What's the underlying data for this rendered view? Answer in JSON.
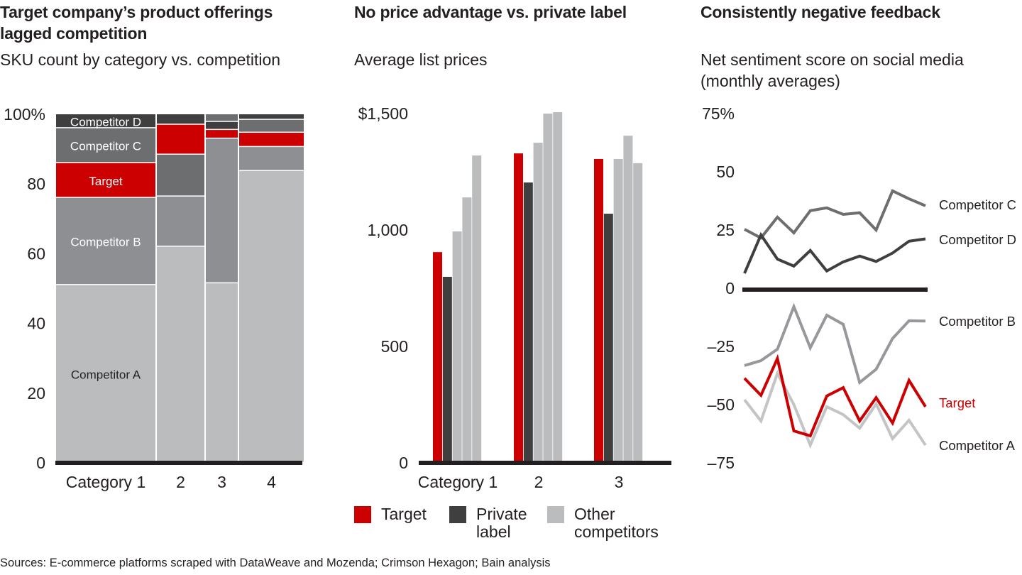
{
  "colors": {
    "target": "#cc0000",
    "competitor_a": "#bbbcbe",
    "competitor_b": "#8e8f92",
    "competitor_c": "#6d6e70",
    "competitor_d": "#3f3f40",
    "private_label": "#3f3f40",
    "other_competitors": "#bbbcbe",
    "axis": "#231f20",
    "line_a": "#c3c4c6",
    "line_b": "#97989b",
    "line_c": "#6d6e70",
    "line_d": "#3f3f40"
  },
  "sources": "Sources: E-commerce platforms scraped with DataWeave and Mozenda; Crimson Hexagon; Bain analysis",
  "chart_data": [
    {
      "type": "bar",
      "stacked": true,
      "variable_width": true,
      "title": "Target company’s product offerings lagged competition",
      "title_lines": [
        "Target company’s product offerings",
        "lagged competition"
      ],
      "subtitle": "SKU count by category vs. competition",
      "xlabel": "",
      "ylabel": "",
      "ylim": [
        0,
        100
      ],
      "yticks": [
        0,
        20,
        40,
        60,
        80,
        100
      ],
      "ytick_labels": [
        "0",
        "20",
        "40",
        "60",
        "80",
        "100%"
      ],
      "categories": [
        "Category 1",
        "2",
        "3",
        "4"
      ],
      "category_widths": [
        140,
        67,
        45,
        91
      ],
      "series": [
        {
          "name": "Competitor A",
          "values": [
            51,
            62,
            51.5,
            83.7
          ]
        },
        {
          "name": "Competitor B",
          "values": [
            25,
            14.4,
            41.5,
            6.9
          ]
        },
        {
          "name": "Target",
          "values": [
            10,
            8.6,
            2.5,
            4.1
          ]
        },
        {
          "name": "Competitor C",
          "values": [
            10,
            12,
            2.2,
            3.7
          ]
        },
        {
          "name": "Competitor D",
          "values": [
            4,
            3,
            2.3,
            1.6
          ]
        }
      ],
      "stack_order": [
        [
          "Competitor A",
          "Competitor B",
          "Target",
          "Competitor C",
          "Competitor D"
        ],
        [
          "Competitor A",
          "Competitor B",
          "Competitor C",
          "Target",
          "Competitor D"
        ],
        [
          "Competitor A",
          "Competitor B",
          "Target",
          "Competitor D",
          "Competitor C"
        ],
        [
          "Competitor A",
          "Competitor B",
          "Target",
          "Competitor C",
          "Competitor D"
        ]
      ],
      "segment_labels": [
        "Competitor A",
        "Competitor B",
        "Target",
        "Competitor C",
        "Competitor D"
      ],
      "grid": false
    },
    {
      "type": "bar",
      "title": "No price advantage vs. private label",
      "subtitle": "Average list prices",
      "xlabel": "",
      "ylabel": "",
      "ylim": [
        0,
        1500
      ],
      "yticks": [
        0,
        500,
        1000,
        1500
      ],
      "ytick_labels": [
        "0",
        "500",
        "1,000",
        "$1,500"
      ],
      "categories": [
        "Category 1",
        "2",
        "3"
      ],
      "series": [
        {
          "name": "Target",
          "values": [
            905,
            1329,
            1305
          ]
        },
        {
          "name": "Private label",
          "values": [
            799,
            1204,
            1070
          ]
        },
        {
          "name": "Other competitors",
          "values": [
            [
              994,
              1140,
              1320
            ],
            [
              1375,
              1500,
              1506
            ],
            [
              1305,
              1405,
              1287
            ]
          ]
        }
      ],
      "legend": [
        {
          "name": "Target",
          "lines": [
            "Target"
          ]
        },
        {
          "name": "Private label",
          "lines": [
            "Private",
            "label"
          ]
        },
        {
          "name": "Other competitors",
          "lines": [
            "Other",
            "competitors"
          ]
        }
      ],
      "legend_position": "bottom",
      "grid": false
    },
    {
      "type": "line",
      "title": "Consistently negative feedback",
      "subtitle_lines": [
        "Net sentiment score on social media",
        "(monthly averages)"
      ],
      "xlabel": "",
      "ylabel": "",
      "x": [
        1,
        2,
        3,
        4,
        5,
        6,
        7,
        8,
        9,
        10,
        11,
        12
      ],
      "ylim": [
        -75,
        75
      ],
      "yticks": [
        -75,
        -50,
        -25,
        0,
        25,
        50,
        75
      ],
      "ytick_labels": [
        "–75",
        "–50",
        "–25",
        "0",
        "25",
        "50",
        "75%"
      ],
      "series": [
        {
          "name": "Competitor C",
          "values": [
            25.3,
            21.6,
            30.5,
            23.8,
            33.3,
            34.5,
            31.7,
            32.4,
            25.0,
            41.8,
            38.4,
            35.4
          ]
        },
        {
          "name": "Competitor D",
          "values": [
            6.4,
            22.9,
            12.5,
            9.5,
            16.2,
            7.4,
            11.3,
            13.8,
            11.5,
            15.1,
            20.2,
            21.2
          ]
        },
        {
          "name": "Competitor B",
          "values": [
            -33.2,
            -31.1,
            -26.2,
            -7.9,
            -25.6,
            -11.6,
            -15.5,
            -40.5,
            -34.8,
            -21.6,
            -14.0,
            -14.1
          ]
        },
        {
          "name": "Competitor A",
          "values": [
            -47.9,
            -57.0,
            -36.6,
            -50.0,
            -67.4,
            -50.9,
            -54.3,
            -60.1,
            -49.7,
            -64.6,
            -56.7,
            -67.4
          ]
        },
        {
          "name": "Target",
          "values": [
            -38.7,
            -46.0,
            -30.2,
            -61.3,
            -63.4,
            -46.3,
            -42.7,
            -57.0,
            -47.0,
            -57.9,
            -39.6,
            -50.9
          ]
        }
      ],
      "series_labels": [
        "Competitor C",
        "Competitor D",
        "Competitor B",
        "Target",
        "Competitor A"
      ],
      "legend_position": "right (inline labels)",
      "grid": false
    }
  ]
}
